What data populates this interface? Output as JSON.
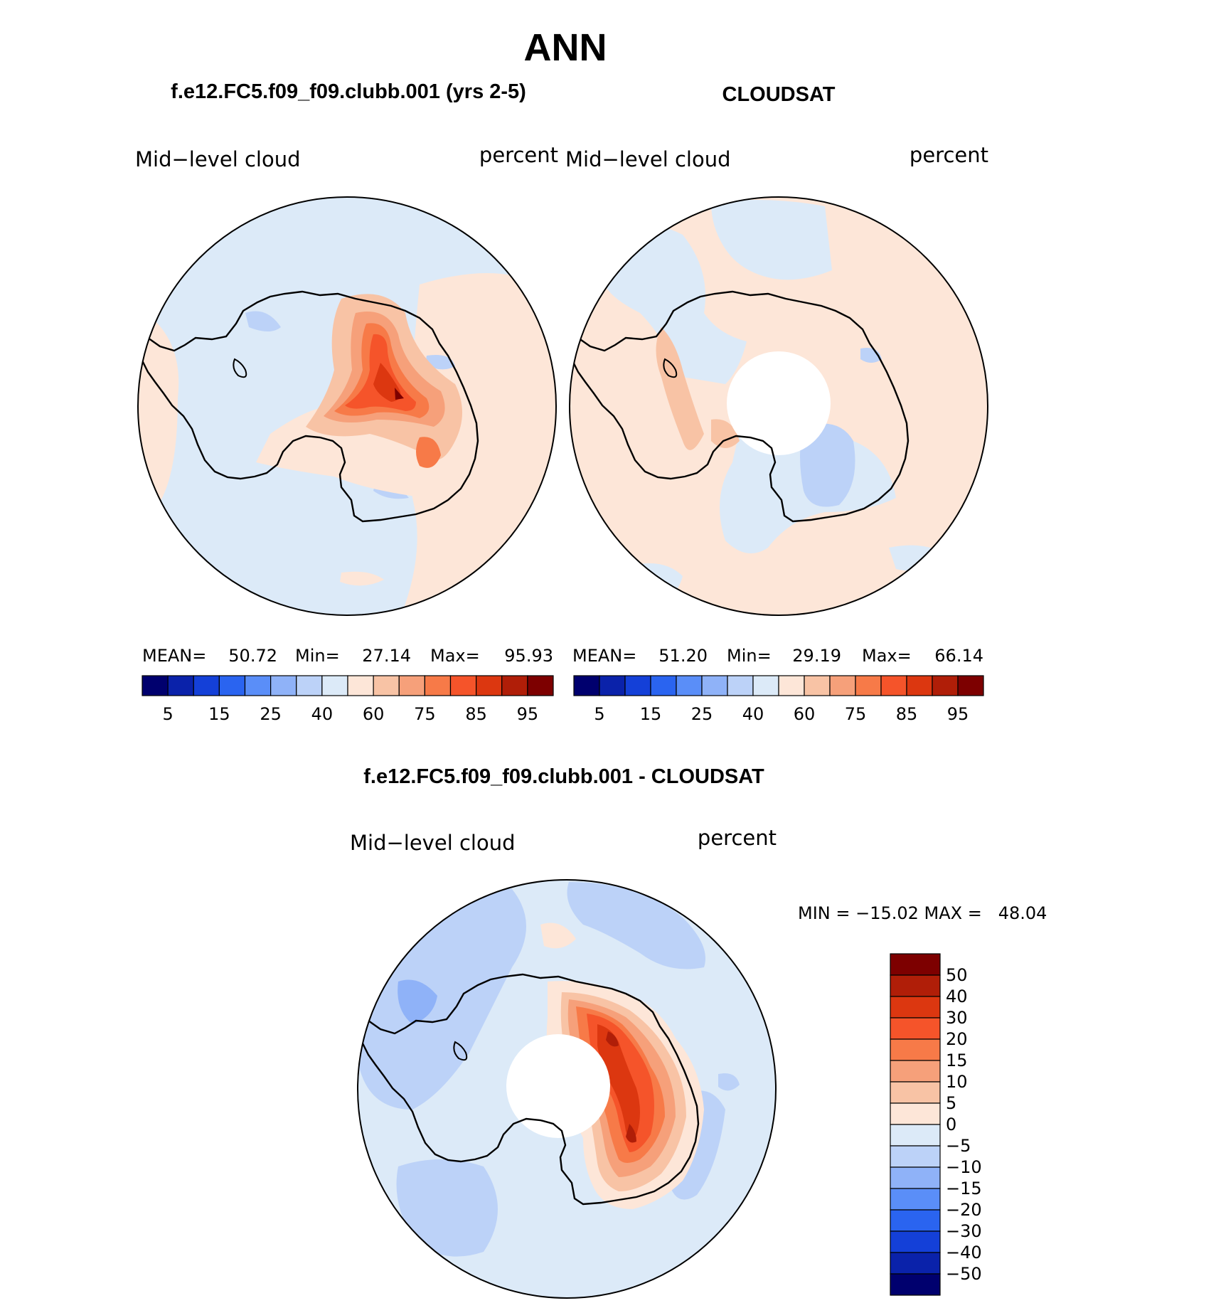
{
  "main_title": "ANN",
  "panels": [
    {
      "title": "f.e12.FC5.f09_f09.clubb.001 (yrs 2-5)",
      "variable": "Mid−level cloud",
      "units": "percent",
      "stats": {
        "mean_label": "MEAN=",
        "mean": "50.72",
        "min_label": "Min=",
        "min": "27.14",
        "max_label": "Max=",
        "max": "95.93"
      }
    },
    {
      "title": "CLOUDSAT",
      "variable": "Mid−level cloud",
      "units": "percent",
      "stats": {
        "mean_label": "MEAN=",
        "mean": "51.20",
        "min_label": "Min=",
        "min": "29.19",
        "max_label": "Max=",
        "max": "66.14"
      }
    }
  ],
  "diff_panel": {
    "title": "f.e12.FC5.f09_f09.clubb.001 - CLOUDSAT",
    "variable": "Mid−level cloud",
    "units": "percent",
    "min_max_text": "MIN = −15.02 MAX =   48.04"
  },
  "colorbar_abs": {
    "colors": [
      "#00006e",
      "#0a22aa",
      "#1440d8",
      "#2a64f0",
      "#5a8ef8",
      "#8fb2f8",
      "#bcd2f8",
      "#dceaf8",
      "#fde6d8",
      "#f8c3a5",
      "#f6a07a",
      "#f77a48",
      "#f5542a",
      "#dc3710",
      "#b01e08",
      "#7d0000"
    ],
    "tick_labels": [
      "5",
      "15",
      "25",
      "40",
      "60",
      "75",
      "85",
      "95"
    ]
  },
  "colorbar_diff": {
    "colors": [
      "#7d0000",
      "#b01e08",
      "#dc3710",
      "#f5542a",
      "#f77a48",
      "#f6a07a",
      "#f8c3a5",
      "#fde6d8",
      "#dceaf8",
      "#bcd2f8",
      "#8fb2f8",
      "#5a8ef8",
      "#2a64f0",
      "#1440d8",
      "#0a22aa",
      "#00006e"
    ],
    "tick_labels": [
      "50",
      "40",
      "30",
      "20",
      "15",
      "10",
      "5",
      "0",
      "−5",
      "−10",
      "−15",
      "−20",
      "−30",
      "−40",
      "−50"
    ]
  },
  "map_colors": {
    "light_blue": "#dceaf8",
    "mid_blue": "#bcd2f8",
    "blue": "#8fb2f8",
    "light_peach": "#fde6d8",
    "peach": "#f8c3a5",
    "salmon": "#f6a07a",
    "orange": "#f77a48",
    "red_orange": "#f5542a",
    "red": "#dc3710",
    "dark_red": "#b01e08",
    "darkest": "#7d0000",
    "coast": "#000000"
  }
}
